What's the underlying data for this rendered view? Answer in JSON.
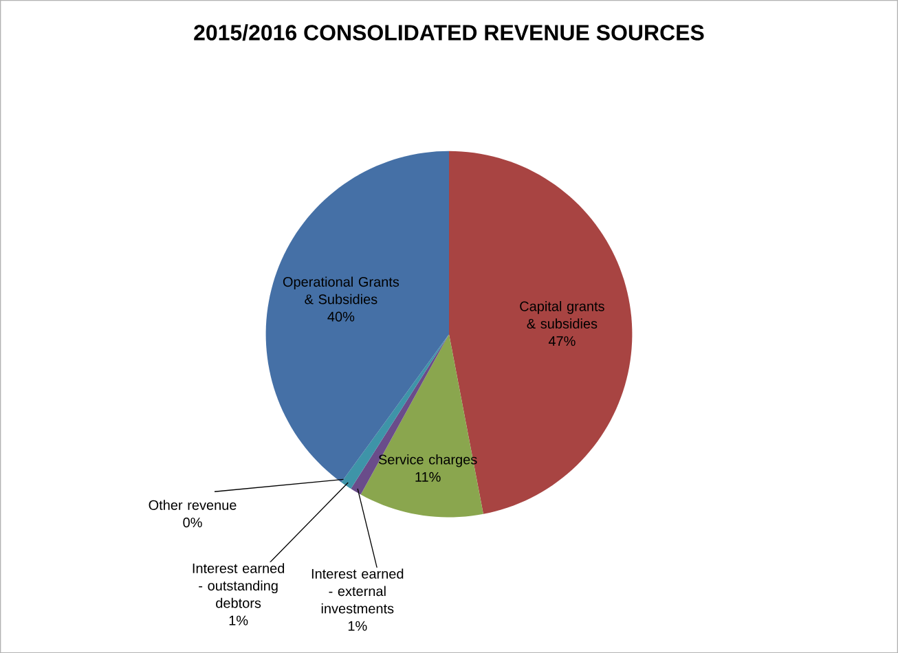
{
  "chart_data": {
    "type": "pie",
    "title": "2015/2016 CONSOLIDATED REVENUE SOURCES",
    "categories": [
      "Capital grants & subsidies",
      "Service charges",
      "Interest earned - external investments",
      "Interest earned - outstanding debtors",
      "Other revenue",
      "Operational Grants & Subsidies"
    ],
    "values": [
      47,
      11,
      1,
      1,
      0,
      40
    ],
    "value_labels": [
      "47%",
      "11%",
      "1%",
      "1%",
      "0%",
      "40%"
    ],
    "colors": [
      "#a84442",
      "#8aa64e",
      "#6a4c8a",
      "#3e94a8",
      "#d07a2c",
      "#4570a6"
    ]
  }
}
